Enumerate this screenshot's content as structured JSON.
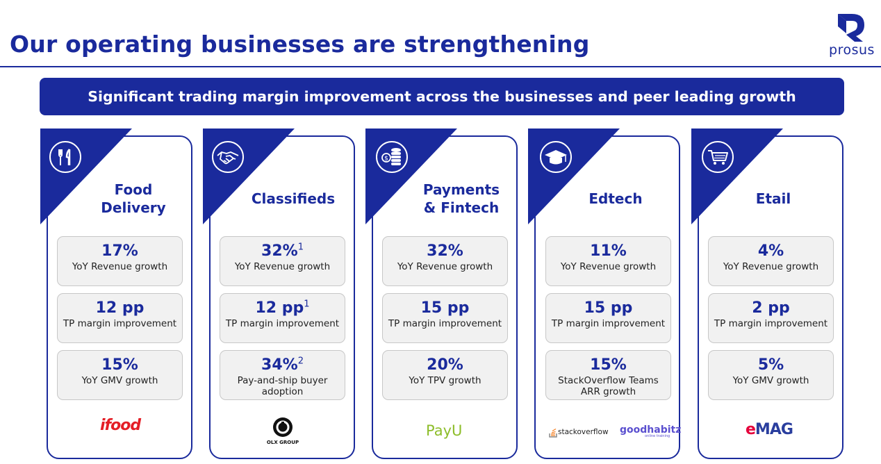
{
  "page": {
    "title": "Our operating businesses are strengthening",
    "logo_text": "prosus",
    "banner": "Significant trading margin improvement across the businesses and peer leading growth"
  },
  "colors": {
    "brand_blue": "#1a2a9c",
    "metric_bg": "#f1f1f1",
    "ifood_red": "#e41e26",
    "payu_green": "#8dbd2a",
    "emag_red": "#e5003b",
    "emag_blue": "#2a3e9e"
  },
  "cards": [
    {
      "icon": "fork-knife-icon",
      "name": "Food\nDelivery",
      "metrics": [
        {
          "value": "17%",
          "sup": "",
          "label": "YoY Revenue growth"
        },
        {
          "value": "12 pp",
          "sup": "",
          "label": "TP margin improvement"
        },
        {
          "value": "15%",
          "sup": "",
          "label": "YoY GMV growth"
        }
      ],
      "brands": [
        "ifood"
      ]
    },
    {
      "icon": "handshake-icon",
      "name": "Classifieds",
      "metrics": [
        {
          "value": "32%",
          "sup": "1",
          "label": "YoY Revenue growth"
        },
        {
          "value": "12 pp",
          "sup": "1",
          "label": "TP margin improvement"
        },
        {
          "value": "34%",
          "sup": "2",
          "label": "Pay-and-ship buyer\nadoption"
        }
      ],
      "brands": [
        "OLX GROUP"
      ]
    },
    {
      "icon": "coins-icon",
      "name": "Payments\n& Fintech",
      "metrics": [
        {
          "value": "32%",
          "sup": "",
          "label": "YoY Revenue growth"
        },
        {
          "value": "15 pp",
          "sup": "",
          "label": "TP margin improvement"
        },
        {
          "value": "20%",
          "sup": "",
          "label": "YoY TPV growth"
        }
      ],
      "brands": [
        "PayU"
      ]
    },
    {
      "icon": "graduation-cap-icon",
      "name": "Edtech",
      "metrics": [
        {
          "value": "11%",
          "sup": "",
          "label": "YoY Revenue growth"
        },
        {
          "value": "15 pp",
          "sup": "",
          "label": "TP margin improvement"
        },
        {
          "value": "15%",
          "sup": "",
          "label": "StackOverflow Teams\nARR growth"
        }
      ],
      "brands": [
        "stackoverflow",
        "goodhabitz",
        "online training"
      ]
    },
    {
      "icon": "shopping-cart-icon",
      "name": "Etail",
      "metrics": [
        {
          "value": "4%",
          "sup": "",
          "label": "YoY Revenue growth"
        },
        {
          "value": "2 pp",
          "sup": "",
          "label": "TP margin improvement"
        },
        {
          "value": "5%",
          "sup": "",
          "label": "YoY GMV growth"
        }
      ],
      "brands": [
        "eMAG"
      ]
    }
  ]
}
